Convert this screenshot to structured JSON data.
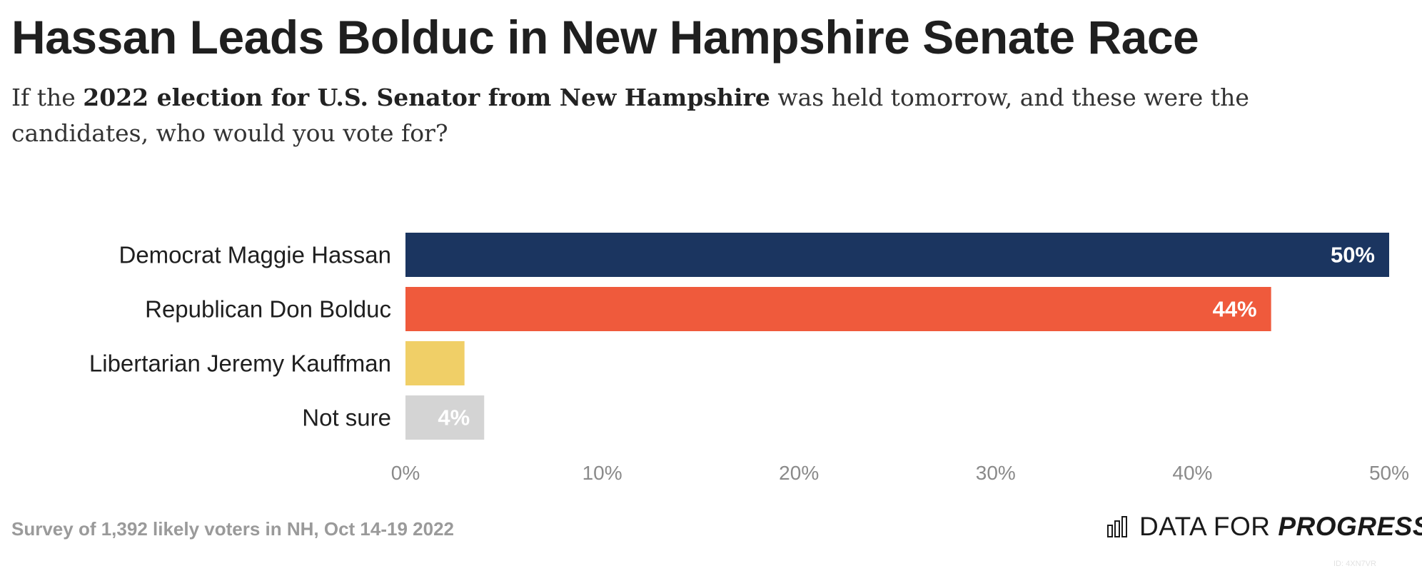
{
  "header": {
    "title": "Hassan Leads Bolduc in New Hampshire Senate Race",
    "subtitle_pre": "If the ",
    "subtitle_bold": "2022 election for U.S. Senator from New Hampshire",
    "subtitle_post": " was held tomorrow, and these were the candidates, who would you vote for?"
  },
  "chart_data": {
    "type": "bar",
    "orientation": "horizontal",
    "title": "Hassan Leads Bolduc in New Hampshire Senate Race",
    "xlabel": "",
    "ylabel": "",
    "categories": [
      "Democrat Maggie Hassan",
      "Republican Don Bolduc",
      "Libertarian Jeremy Kauffman",
      "Not sure"
    ],
    "values": [
      50,
      44,
      3,
      4
    ],
    "value_labels": [
      "50%",
      "44%",
      "",
      "4%"
    ],
    "colors": [
      "#1b3560",
      "#ef5a3c",
      "#f0cf67",
      "#d4d4d4"
    ],
    "xlim": [
      0,
      50
    ],
    "xticks": [
      0,
      10,
      20,
      30,
      40,
      50
    ],
    "xtick_labels": [
      "0%",
      "10%",
      "20%",
      "30%",
      "40%",
      "50%"
    ],
    "grid": false,
    "legend": "none"
  },
  "footer": {
    "note": "Survey of 1,392 likely voters in NH, Oct 14-19 2022",
    "logo_text_regular": "DATA FOR ",
    "logo_text_bold": "PROGRESS",
    "logo_icon": "bar-chart-icon",
    "image_id": "ID: 4XN7VR"
  }
}
